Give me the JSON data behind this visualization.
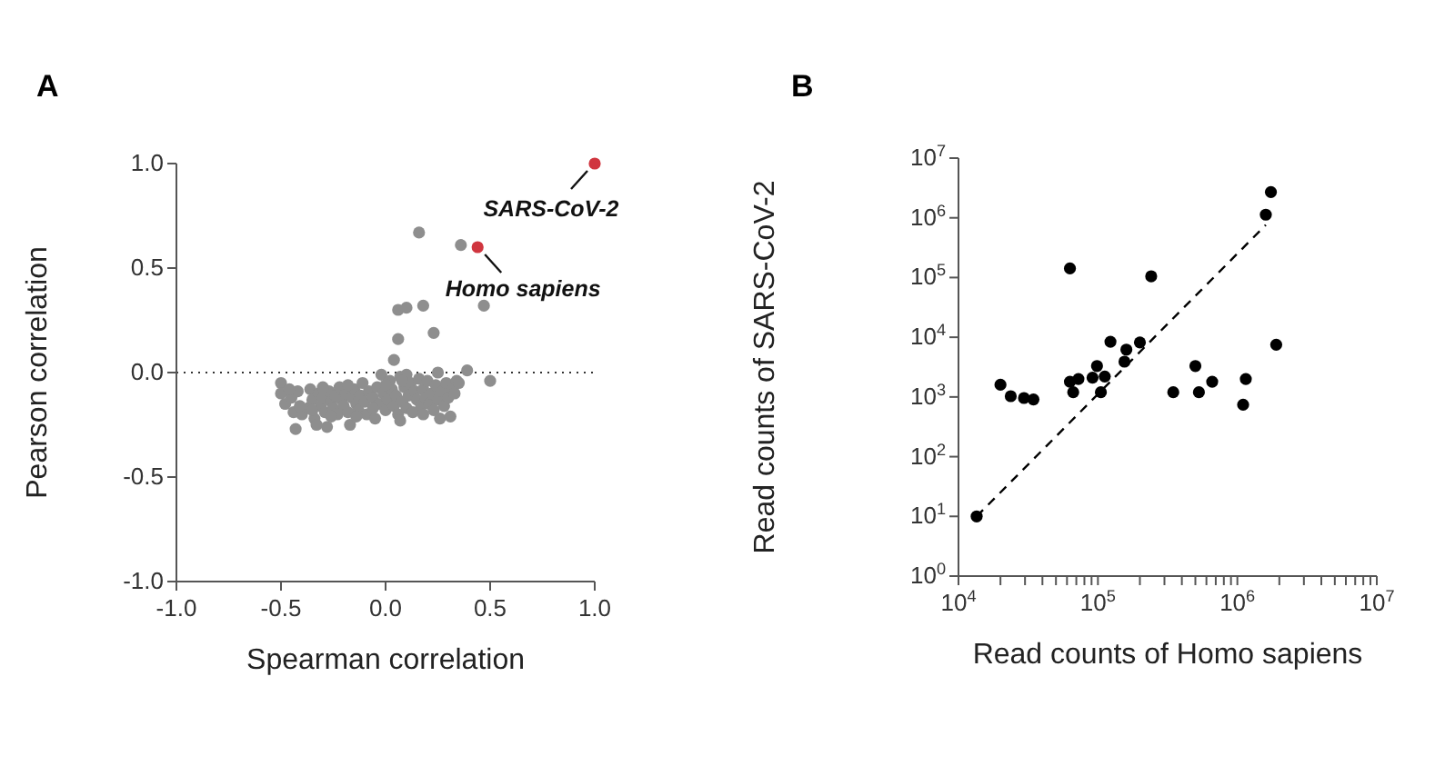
{
  "chart_data": [
    {
      "type": "scatter",
      "title": "A",
      "xlabel": "Spearman correlation",
      "ylabel": "Pearson correlation",
      "xlim": [
        -1,
        1
      ],
      "xticks": [
        {
          "value": -1,
          "label": "-1.0"
        },
        {
          "value": -0.5,
          "label": "-0.5"
        },
        {
          "value": 0,
          "label": "0.0"
        },
        {
          "value": 0.5,
          "label": "0.5"
        },
        {
          "value": 1,
          "label": "1.0"
        }
      ],
      "ylim": [
        -1,
        1
      ],
      "yticks": [
        {
          "value": -1,
          "label": "-1.0"
        },
        {
          "value": -0.5,
          "label": "-0.5"
        },
        {
          "value": 0,
          "label": "0.0"
        },
        {
          "value": 0.5,
          "label": "0.5"
        },
        {
          "value": 1,
          "label": "1.0"
        }
      ],
      "marker": "circle",
      "ref_lines": [
        {
          "axis": "y",
          "value": 0,
          "line_style": "dotted",
          "color": "#333333"
        }
      ],
      "annotations": [
        {
          "text": "SARS-CoV-2",
          "x": 1.0,
          "y": 1.0
        },
        {
          "text": "Homo sapiens",
          "x": 0.44,
          "y": 0.6
        }
      ],
      "series": [
        {
          "color": "#8e8e8e",
          "x": [
            0.16,
            0.36,
            0.06,
            0.1,
            0.18,
            0.47,
            0.23,
            0.06,
            0.04,
            0.39,
            0.5,
            -0.5,
            -0.5,
            -0.48,
            -0.45,
            -0.44,
            -0.43,
            -0.42,
            -0.4,
            -0.37,
            -0.36,
            -0.35,
            -0.34,
            -0.33,
            -0.32,
            -0.31,
            -0.3,
            -0.29,
            -0.28,
            -0.27,
            -0.26,
            -0.25,
            -0.24,
            -0.23,
            -0.22,
            -0.21,
            -0.2,
            -0.19,
            -0.18,
            -0.17,
            -0.16,
            -0.15,
            -0.14,
            -0.13,
            -0.12,
            -0.11,
            -0.1,
            -0.09,
            -0.08,
            -0.06,
            -0.05,
            -0.04,
            -0.03,
            -0.02,
            -0.01,
            0.0,
            0.01,
            0.02,
            0.03,
            0.04,
            0.05,
            0.06,
            0.07,
            0.07,
            0.08,
            0.09,
            0.1,
            0.1,
            0.11,
            0.12,
            0.13,
            0.14,
            0.15,
            0.16,
            0.17,
            0.18,
            0.18,
            0.19,
            0.2,
            0.21,
            0.22,
            0.23,
            0.24,
            0.25,
            0.25,
            0.26,
            0.27,
            0.28,
            0.29,
            0.3,
            0.31,
            0.32,
            0.33,
            0.34,
            0.35,
            -0.46,
            -0.41,
            -0.35,
            -0.3,
            -0.26,
            -0.18,
            -0.14,
            -0.06,
            0.0,
            0.08
          ],
          "values": [
            0.67,
            0.61,
            0.3,
            0.31,
            0.32,
            0.32,
            0.19,
            0.16,
            0.06,
            0.01,
            -0.04,
            -0.05,
            -0.1,
            -0.15,
            -0.12,
            -0.19,
            -0.27,
            -0.09,
            -0.2,
            -0.17,
            -0.08,
            -0.13,
            -0.22,
            -0.25,
            -0.1,
            -0.16,
            -0.12,
            -0.19,
            -0.26,
            -0.09,
            -0.14,
            -0.17,
            -0.11,
            -0.2,
            -0.07,
            -0.13,
            -0.16,
            -0.1,
            -0.19,
            -0.25,
            -0.12,
            -0.08,
            -0.15,
            -0.18,
            -0.11,
            -0.05,
            -0.14,
            -0.2,
            -0.09,
            -0.12,
            -0.22,
            -0.07,
            -0.15,
            -0.01,
            -0.1,
            -0.18,
            -0.13,
            -0.04,
            -0.08,
            -0.16,
            -0.11,
            -0.2,
            -0.23,
            -0.02,
            -0.14,
            -0.07,
            -0.01,
            -0.17,
            -0.11,
            -0.05,
            -0.19,
            -0.09,
            -0.13,
            -0.03,
            -0.16,
            -0.2,
            -0.08,
            -0.12,
            -0.04,
            -0.15,
            -0.1,
            -0.18,
            -0.06,
            0.0,
            -0.13,
            -0.22,
            -0.09,
            -0.16,
            -0.05,
            -0.12,
            -0.21,
            -0.08,
            -0.1,
            -0.04,
            -0.05,
            -0.08,
            -0.16,
            -0.18,
            -0.07,
            -0.21,
            -0.06,
            -0.21,
            -0.17,
            -0.06,
            -0.04
          ]
        },
        {
          "color": "#d0353f",
          "x": [
            1.0,
            0.44
          ],
          "values": [
            1.0,
            0.6
          ]
        }
      ]
    },
    {
      "type": "scatter",
      "title": "B",
      "xlabel": "Read counts of Homo sapiens",
      "ylabel": "Read counts of SARS-CoV-2",
      "log": "xy",
      "marker": "circle",
      "xlim": [
        10000,
        10000000
      ],
      "xticks": [
        {
          "value": 10000,
          "label": "10$^{4}$"
        },
        {
          "value": 20000,
          "label": null
        },
        {
          "value": 30000,
          "label": null
        },
        {
          "value": 40000,
          "label": null
        },
        {
          "value": 50000,
          "label": null
        },
        {
          "value": 60000,
          "label": null
        },
        {
          "value": 70000,
          "label": null
        },
        {
          "value": 80000,
          "label": null
        },
        {
          "value": 90000,
          "label": null
        },
        {
          "value": 100000,
          "label": "10$^{5}$"
        },
        {
          "value": 200000,
          "label": null
        },
        {
          "value": 300000,
          "label": null
        },
        {
          "value": 400000,
          "label": null
        },
        {
          "value": 500000,
          "label": null
        },
        {
          "value": 600000,
          "label": null
        },
        {
          "value": 700000,
          "label": null
        },
        {
          "value": 800000,
          "label": null
        },
        {
          "value": 900000,
          "label": null
        },
        {
          "value": 1000000,
          "label": "10$^{6}$"
        },
        {
          "value": 2000000,
          "label": null
        },
        {
          "value": 3000000,
          "label": null
        },
        {
          "value": 4000000,
          "label": null
        },
        {
          "value": 5000000,
          "label": null
        },
        {
          "value": 6000000,
          "label": null
        },
        {
          "value": 7000000,
          "label": null
        },
        {
          "value": 8000000,
          "label": null
        },
        {
          "value": 9000000,
          "label": null
        },
        {
          "value": 10000000,
          "label": "10$^{7}$"
        }
      ],
      "ylim": [
        1,
        10000000
      ],
      "yticks": [
        {
          "value": 1,
          "label": "10$^{0}$"
        },
        {
          "value": 10,
          "label": "10$^{1}$"
        },
        {
          "value": 100,
          "label": "10$^{2}$"
        },
        {
          "value": 1000,
          "label": "10$^{3}$"
        },
        {
          "value": 10000,
          "label": "10$^{4}$"
        },
        {
          "value": 100000,
          "label": "10$^{5}$"
        },
        {
          "value": 1000000,
          "label": "10$^{6}$"
        },
        {
          "value": 10000000,
          "label": "10$^{7}$"
        }
      ],
      "series": [
        {
          "color": "#000000",
          "x": [
            13500,
            20000,
            23700,
            29500,
            34500,
            63000,
            63000,
            66500,
            72500,
            91500,
            98500,
            105000,
            112000,
            123000,
            155000,
            160000,
            200000,
            241000,
            347000,
            500000,
            530000,
            660000,
            1100000,
            1150000,
            1600000,
            1740000,
            1900000
          ],
          "values": [
            10,
            1600,
            1030,
            960,
            910,
            142000,
            1800,
            1200,
            2000,
            2100,
            3300,
            1200,
            2200,
            8400,
            3900,
            6200,
            8200,
            105000,
            1200,
            3300,
            1200,
            1800,
            740,
            2000,
            1130000,
            2700000,
            7500
          ]
        },
        {
          "type": "line",
          "color": "#000000",
          "line_style": "dashed",
          "marker": "none",
          "x": [
            13500,
            1600000
          ],
          "values": [
            10,
            760000
          ]
        }
      ]
    }
  ]
}
